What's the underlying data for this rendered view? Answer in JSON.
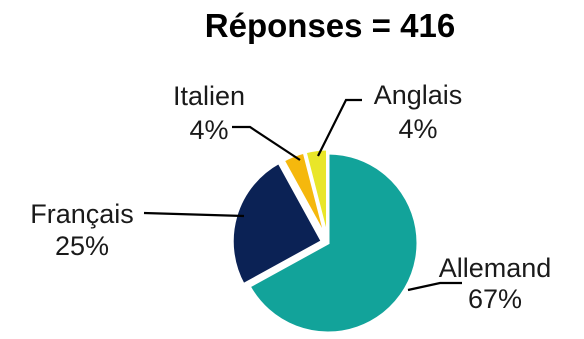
{
  "chart_data": {
    "type": "pie",
    "title": "Réponses = 416",
    "start_angle_deg": 0,
    "direction": "clockwise",
    "slices": [
      {
        "label": "Allemand",
        "value": 67,
        "value_label": "67%",
        "color": "#12a39a"
      },
      {
        "label": "Français",
        "value": 25,
        "value_label": "25%",
        "color": "#0b2255"
      },
      {
        "label": "Italien",
        "value": 4,
        "value_label": "4%",
        "color": "#f5b80d"
      },
      {
        "label": "Anglais",
        "value": 4,
        "value_label": "4%",
        "color": "#e9e629"
      }
    ]
  }
}
